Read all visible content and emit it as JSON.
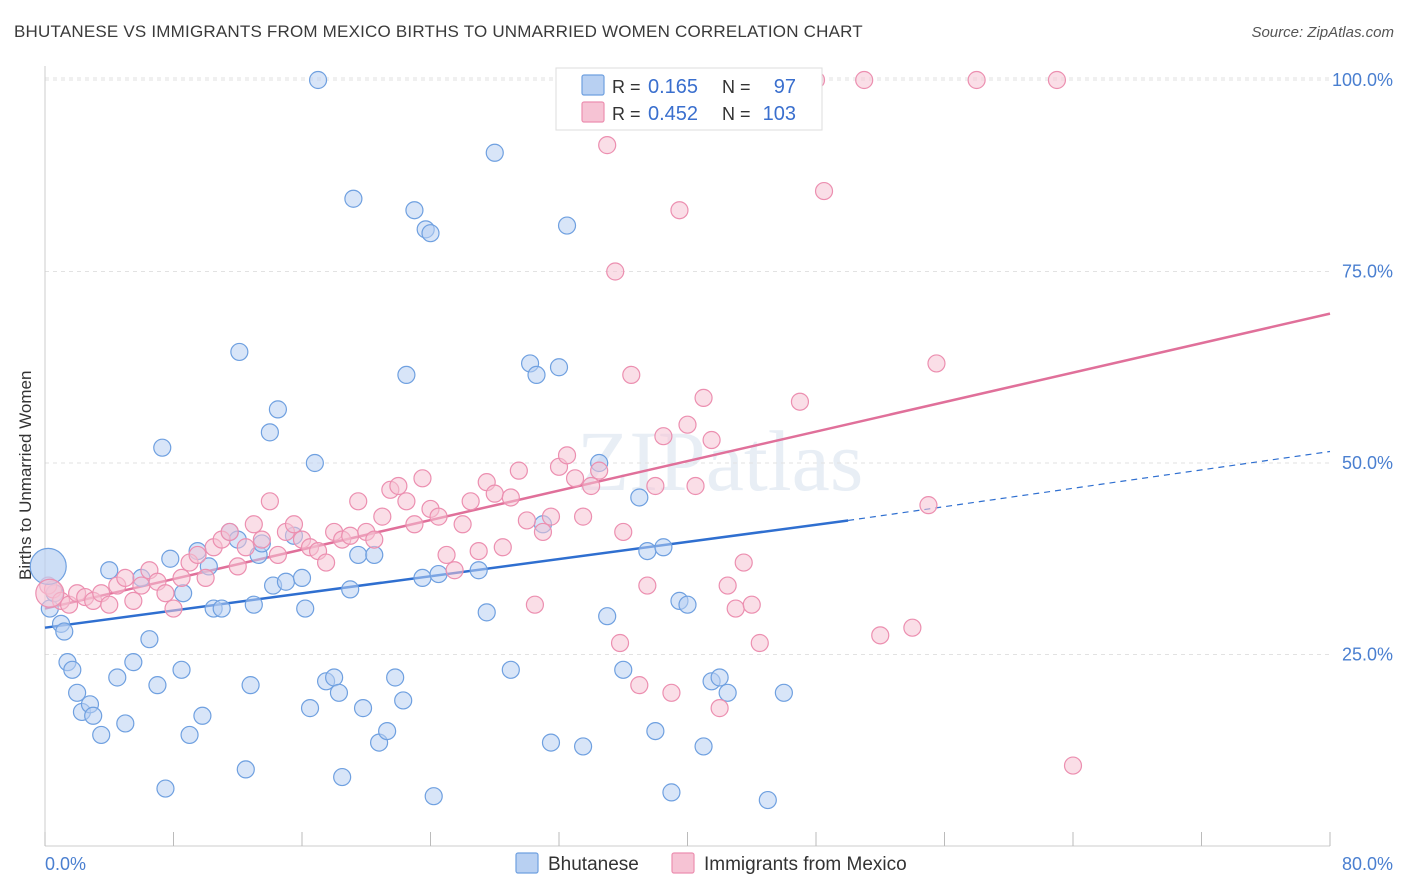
{
  "title": "BHUTANESE VS IMMIGRANTS FROM MEXICO BIRTHS TO UNMARRIED WOMEN CORRELATION CHART",
  "source": "Source: ZipAtlas.com",
  "watermark": "ZIPatlas",
  "colors": {
    "blue": "#6fa0e0",
    "blue_fill": "#b8d0f2",
    "pink": "#ec8fb0",
    "pink_fill": "#f6c3d4",
    "blue_line": "#2f6fd0",
    "pink_line": "#e0709a",
    "tick_text": "#4a7fd0"
  },
  "chart_data": {
    "type": "scatter",
    "title": "BHUTANESE VS IMMIGRANTS FROM MEXICO BIRTHS TO UNMARRIED WOMEN CORRELATION CHART",
    "xlabel": "",
    "ylabel": "Births to Unmarried Women",
    "xlim": [
      0,
      80
    ],
    "ylim": [
      0,
      102
    ],
    "y_ticks": [
      "25.0%",
      "50.0%",
      "75.0%",
      "100.0%"
    ],
    "y_tick_values": [
      25,
      50,
      75,
      100
    ],
    "x_ticks": [
      "0.0%",
      "80.0%"
    ],
    "x_tick_values": [
      0,
      80
    ],
    "grid": true,
    "legend_top": [
      {
        "r_label": "R =",
        "r": "0.165",
        "n_label": "N =",
        "n": "97"
      },
      {
        "r_label": "R =",
        "r": "0.452",
        "n_label": "N =",
        "n": "103"
      }
    ],
    "legend_bottom": [
      "Bhutanese",
      "Immigrants from Mexico"
    ],
    "series": [
      {
        "name": "Bhutanese",
        "trend": {
          "x0": 0,
          "y0": 28.5,
          "x1": 50,
          "y1": 42.5,
          "dash_to_x": 80,
          "dash_to_y": 51.5
        },
        "points": [
          [
            0.3,
            31
          ],
          [
            0.6,
            33
          ],
          [
            1,
            29
          ],
          [
            1.2,
            28
          ],
          [
            1.4,
            24
          ],
          [
            1.7,
            23
          ],
          [
            2,
            20
          ],
          [
            2.3,
            17.5
          ],
          [
            2.8,
            18.5
          ],
          [
            3,
            17
          ],
          [
            3.5,
            14.5
          ],
          [
            4,
            36
          ],
          [
            4.5,
            22
          ],
          [
            5,
            16
          ],
          [
            5.5,
            24
          ],
          [
            6,
            35
          ],
          [
            6.5,
            27
          ],
          [
            7,
            21
          ],
          [
            7.3,
            52
          ],
          [
            7.5,
            7.5
          ],
          [
            7.8,
            37.5
          ],
          [
            8.5,
            23
          ],
          [
            8.6,
            33
          ],
          [
            9,
            14.5
          ],
          [
            9.5,
            38.5
          ],
          [
            9.8,
            17
          ],
          [
            10.2,
            36.5
          ],
          [
            10.5,
            31
          ],
          [
            11,
            31
          ],
          [
            11.5,
            41
          ],
          [
            12,
            40
          ],
          [
            12.1,
            64.5
          ],
          [
            12.5,
            10
          ],
          [
            12.8,
            21
          ],
          [
            13,
            31.5
          ],
          [
            13.3,
            38
          ],
          [
            13.5,
            39.5
          ],
          [
            14,
            54
          ],
          [
            14.2,
            34
          ],
          [
            14.5,
            57
          ],
          [
            15,
            34.5
          ],
          [
            15.5,
            40.5
          ],
          [
            16,
            35
          ],
          [
            16.2,
            31
          ],
          [
            16.5,
            18
          ],
          [
            16.8,
            50
          ],
          [
            17,
            100
          ],
          [
            17.5,
            21.5
          ],
          [
            18,
            22
          ],
          [
            18.3,
            20
          ],
          [
            18.5,
            9
          ],
          [
            19,
            33.5
          ],
          [
            19.2,
            84.5
          ],
          [
            19.5,
            38
          ],
          [
            19.8,
            18
          ],
          [
            20.5,
            38
          ],
          [
            20.8,
            13.5
          ],
          [
            21.3,
            15
          ],
          [
            21.8,
            22
          ],
          [
            22.3,
            19
          ],
          [
            22.5,
            61.5
          ],
          [
            23,
            83
          ],
          [
            23.5,
            35
          ],
          [
            23.7,
            80.5
          ],
          [
            24,
            80
          ],
          [
            24.2,
            6.5
          ],
          [
            24.5,
            35.5
          ],
          [
            27,
            36
          ],
          [
            27.5,
            30.5
          ],
          [
            28,
            90.5
          ],
          [
            29,
            23
          ],
          [
            30.2,
            63
          ],
          [
            30.6,
            61.5
          ],
          [
            31,
            42
          ],
          [
            31.5,
            13.5
          ],
          [
            32,
            62.5
          ],
          [
            32.5,
            81
          ],
          [
            33.5,
            13
          ],
          [
            34.5,
            50
          ],
          [
            35,
            30
          ],
          [
            36,
            23
          ],
          [
            37,
            45.5
          ],
          [
            37.5,
            38.5
          ],
          [
            38,
            15
          ],
          [
            38.5,
            39
          ],
          [
            39,
            7
          ],
          [
            39.5,
            32
          ],
          [
            40,
            31.5
          ],
          [
            41,
            13
          ],
          [
            41.5,
            21.5
          ],
          [
            42,
            22
          ],
          [
            42.5,
            20
          ],
          [
            42.8,
            98
          ],
          [
            43,
            100
          ],
          [
            45,
            6
          ],
          [
            46,
            20
          ]
        ]
      },
      {
        "name": "Immigrants from Mexico",
        "trend": {
          "x0": 0,
          "y0": 31,
          "x1": 80,
          "y1": 69.5
        },
        "points": [
          [
            0.2,
            34
          ],
          [
            0.5,
            33.5
          ],
          [
            1,
            32
          ],
          [
            1.5,
            31.5
          ],
          [
            2,
            33
          ],
          [
            2.5,
            32.5
          ],
          [
            3,
            32
          ],
          [
            3.5,
            33
          ],
          [
            4,
            31.5
          ],
          [
            4.5,
            34
          ],
          [
            5,
            35
          ],
          [
            5.5,
            32
          ],
          [
            6,
            34
          ],
          [
            6.5,
            36
          ],
          [
            7,
            34.5
          ],
          [
            7.5,
            33
          ],
          [
            8,
            31
          ],
          [
            8.5,
            35
          ],
          [
            9,
            37
          ],
          [
            9.5,
            38
          ],
          [
            10,
            35
          ],
          [
            10.5,
            39
          ],
          [
            11,
            40
          ],
          [
            11.5,
            41
          ],
          [
            12,
            36.5
          ],
          [
            12.5,
            39
          ],
          [
            13,
            42
          ],
          [
            13.5,
            40
          ],
          [
            14,
            45
          ],
          [
            14.5,
            38
          ],
          [
            15,
            41
          ],
          [
            15.5,
            42
          ],
          [
            16,
            40
          ],
          [
            16.5,
            39
          ],
          [
            17,
            38.5
          ],
          [
            17.5,
            37
          ],
          [
            18,
            41
          ],
          [
            18.5,
            40
          ],
          [
            19,
            40.5
          ],
          [
            19.5,
            45
          ],
          [
            20,
            41
          ],
          [
            20.5,
            40
          ],
          [
            21,
            43
          ],
          [
            21.5,
            46.5
          ],
          [
            22,
            47
          ],
          [
            22.5,
            45
          ],
          [
            23,
            42
          ],
          [
            23.5,
            48
          ],
          [
            24,
            44
          ],
          [
            24.5,
            43
          ],
          [
            25,
            38
          ],
          [
            25.5,
            36
          ],
          [
            26,
            42
          ],
          [
            26.5,
            45
          ],
          [
            27,
            38.5
          ],
          [
            27.5,
            47.5
          ],
          [
            28,
            46
          ],
          [
            28.5,
            39
          ],
          [
            29,
            45.5
          ],
          [
            29.5,
            49
          ],
          [
            30,
            42.5
          ],
          [
            30.5,
            31.5
          ],
          [
            31,
            41
          ],
          [
            31.5,
            43
          ],
          [
            32,
            49.5
          ],
          [
            32.5,
            51
          ],
          [
            33,
            48
          ],
          [
            33.5,
            43
          ],
          [
            34,
            47
          ],
          [
            34.5,
            49
          ],
          [
            35,
            91.5
          ],
          [
            35.5,
            75
          ],
          [
            35.8,
            26.5
          ],
          [
            36,
            41
          ],
          [
            36.5,
            61.5
          ],
          [
            37,
            21
          ],
          [
            37.5,
            34
          ],
          [
            38,
            47
          ],
          [
            38.5,
            53.5
          ],
          [
            39,
            20
          ],
          [
            39.5,
            83
          ],
          [
            40,
            55
          ],
          [
            40.5,
            47
          ],
          [
            41,
            58.5
          ],
          [
            41.5,
            53
          ],
          [
            42,
            18
          ],
          [
            42.5,
            34
          ],
          [
            43,
            31
          ],
          [
            43.5,
            37
          ],
          [
            44,
            31.5
          ],
          [
            44.5,
            26.5
          ],
          [
            47,
            58
          ],
          [
            48,
            100
          ],
          [
            48.5,
            85.5
          ],
          [
            51,
            100
          ],
          [
            52,
            27.5
          ],
          [
            54,
            28.5
          ],
          [
            55,
            44.5
          ],
          [
            55.5,
            63
          ],
          [
            58,
            100
          ],
          [
            63,
            100
          ],
          [
            64,
            10.5
          ]
        ]
      }
    ]
  }
}
